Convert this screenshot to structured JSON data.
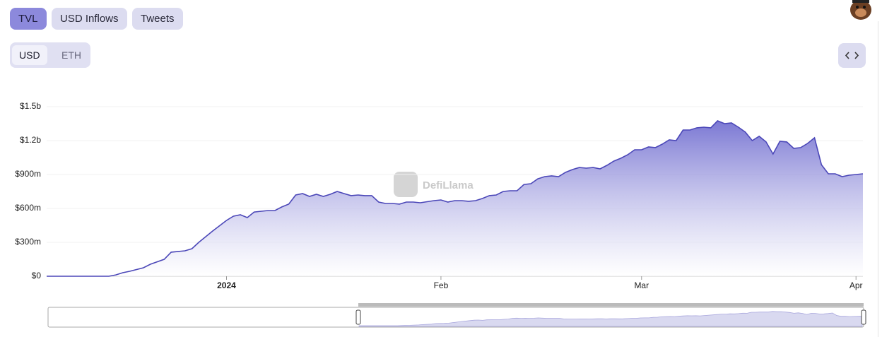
{
  "tabs": [
    "TVL",
    "USD Inflows",
    "Tweets"
  ],
  "denominations": [
    "USD",
    "ETH"
  ],
  "chart_data": {
    "type": "area",
    "watermark": "DefiLlama",
    "x": [
      -26,
      -17,
      -16,
      -15,
      -14,
      -12,
      -11,
      -9,
      -8,
      -6,
      -5,
      -4,
      -2,
      0,
      1,
      2,
      3,
      4,
      6,
      7,
      8,
      9,
      10,
      11,
      12,
      13,
      14,
      15,
      16,
      17,
      18,
      19,
      20,
      21,
      22,
      23,
      24,
      25,
      26,
      27,
      28,
      30,
      31,
      32,
      33,
      34,
      35,
      36,
      37,
      38,
      39,
      40,
      41,
      42,
      43,
      44,
      45,
      46,
      47,
      48,
      49,
      50,
      51,
      52,
      53,
      54,
      55,
      56,
      57,
      58,
      59,
      60,
      61,
      62,
      63,
      64,
      65,
      66,
      67,
      68,
      69,
      70,
      71,
      72,
      73,
      74,
      75,
      76,
      77,
      78,
      79,
      80,
      81,
      82,
      83,
      84,
      85,
      86,
      87,
      88,
      89,
      90,
      92
    ],
    "values": [
      0,
      0,
      12,
      31,
      44,
      75,
      106,
      150,
      213,
      225,
      244,
      300,
      400,
      494,
      531,
      544,
      519,
      568,
      581,
      581,
      613,
      638,
      719,
      731,
      706,
      725,
      706,
      725,
      750,
      731,
      713,
      719,
      713,
      713,
      656,
      644,
      644,
      638,
      656,
      656,
      650,
      669,
      675,
      656,
      669,
      669,
      663,
      669,
      688,
      713,
      719,
      750,
      756,
      756,
      812,
      819,
      862,
      881,
      888,
      881,
      919,
      944,
      962,
      956,
      962,
      950,
      981,
      1019,
      1044,
      1075,
      1119,
      1119,
      1144,
      1138,
      1169,
      1206,
      1200,
      1294,
      1294,
      1313,
      1319,
      1313,
      1375,
      1350,
      1356,
      1319,
      1275,
      1200,
      1238,
      1188,
      1081,
      1194,
      1188,
      1131,
      1138,
      1175,
      1225,
      987,
      906,
      906,
      881,
      894,
      906
    ],
    "color": "#4b47b8",
    "xlim": [
      -26,
      92
    ],
    "xticks": [
      {
        "value": 0,
        "label": "2024"
      },
      {
        "value": 31,
        "label": "Feb"
      },
      {
        "value": 60,
        "label": "Mar"
      },
      {
        "value": 91,
        "label": "Apr"
      }
    ],
    "ylim": [
      0,
      1500
    ],
    "yticks": [
      {
        "value": 0,
        "label": "$0"
      },
      {
        "value": 300,
        "label": "$300m"
      },
      {
        "value": 600,
        "label": "$600m"
      },
      {
        "value": 900,
        "label": "$900m"
      },
      {
        "value": 1200,
        "label": "$1.2b"
      },
      {
        "value": 1500,
        "label": "$1.5b"
      }
    ],
    "grid": true
  }
}
